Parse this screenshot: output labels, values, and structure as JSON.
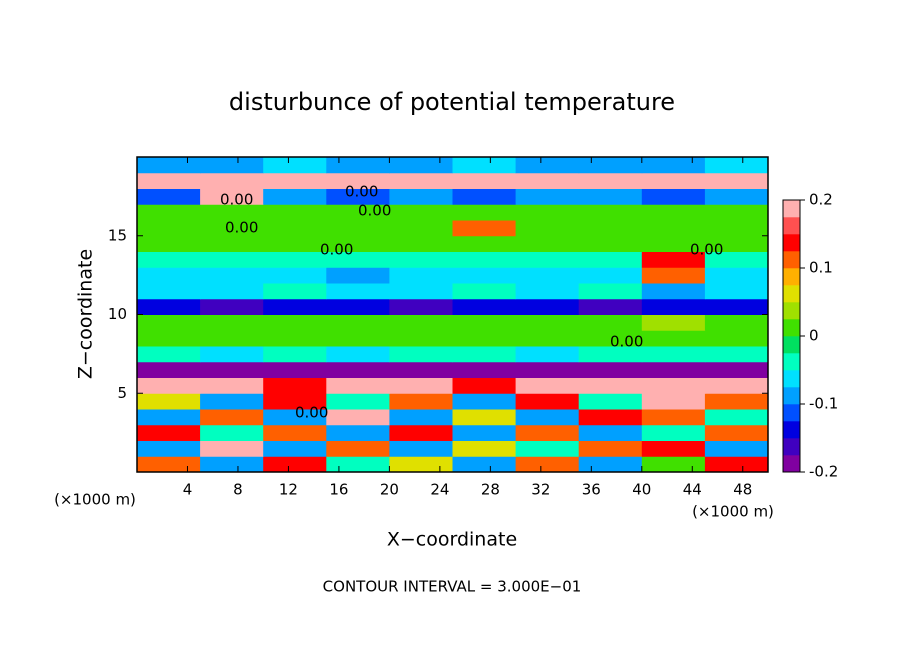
{
  "chart_data": {
    "type": "contourf",
    "title": "disturbunce of potential temperature",
    "x_label": "X−coordinate",
    "y_label": "Z−coordinate",
    "x_unit": "(×1000 m)",
    "x_unit_right": "(×1000 m)",
    "footer": "CONTOUR INTERVAL = 3.000E−01",
    "xlim": [
      0,
      50
    ],
    "ylim": [
      0,
      20
    ],
    "xticks": [
      4,
      8,
      12,
      16,
      20,
      24,
      28,
      32,
      36,
      40,
      44,
      48
    ],
    "yticks": [
      5,
      10,
      15
    ],
    "clim": [
      -0.2,
      0.2
    ],
    "cticks": [
      0.2,
      0.1,
      0,
      -0.1,
      -0.2
    ],
    "colors": [
      "#8000a0",
      "#4000c0",
      "#0000e0",
      "#0050ff",
      "#00a0ff",
      "#00e0ff",
      "#00ffc0",
      "#00e060",
      "#40e000",
      "#a0e000",
      "#e0e000",
      "#ffb000",
      "#ff6000",
      "#ff0000",
      "#ff5050",
      "#ffb0b0"
    ],
    "contour_labels": [
      "0.00",
      "0.00",
      "0.00",
      "0.00",
      "0.00",
      "0.00",
      "0.00",
      "0.00"
    ],
    "x": [
      2.5,
      7.5,
      12.5,
      17.5,
      22.5,
      27.5,
      32.5,
      37.5,
      42.5,
      47.5
    ],
    "y": [
      0.5,
      1.5,
      2.5,
      3.5,
      4.5,
      5.5,
      6.5,
      7.5,
      8.5,
      9.5,
      10.5,
      11.5,
      12.5,
      13.5,
      14.5,
      15.5,
      16.5,
      17.5,
      18.5,
      19.5
    ],
    "values": [
      [
        0.1,
        -0.1,
        0.15,
        -0.05,
        0.05,
        -0.1,
        0.1,
        -0.1,
        0.0,
        0.15
      ],
      [
        -0.1,
        0.2,
        -0.1,
        0.1,
        -0.1,
        0.05,
        -0.05,
        0.1,
        0.15,
        -0.1
      ],
      [
        0.15,
        -0.05,
        0.1,
        -0.1,
        0.15,
        -0.1,
        0.1,
        -0.1,
        -0.05,
        0.1
      ],
      [
        -0.1,
        0.1,
        -0.1,
        0.2,
        -0.1,
        0.05,
        -0.1,
        0.15,
        0.1,
        -0.05
      ],
      [
        0.05,
        -0.1,
        0.15,
        -0.05,
        0.1,
        -0.1,
        0.15,
        -0.05,
        0.2,
        0.1
      ],
      [
        0.2,
        0.2,
        0.15,
        0.2,
        0.2,
        0.15,
        0.2,
        0.2,
        0.2,
        0.2
      ],
      [
        -0.18,
        -0.2,
        -0.18,
        -0.2,
        -0.18,
        -0.2,
        -0.18,
        -0.2,
        -0.18,
        -0.18
      ],
      [
        -0.05,
        -0.06,
        -0.05,
        -0.06,
        -0.05,
        -0.05,
        -0.06,
        -0.05,
        -0.05,
        -0.05
      ],
      [
        0.0,
        0.01,
        0.0,
        0.01,
        0.0,
        0.0,
        0.0,
        0.01,
        0.02,
        0.0
      ],
      [
        0.02,
        0.02,
        0.01,
        0.02,
        0.02,
        0.01,
        0.02,
        0.02,
        0.03,
        0.02
      ],
      [
        -0.15,
        -0.16,
        -0.15,
        -0.15,
        -0.16,
        -0.15,
        -0.15,
        -0.16,
        -0.15,
        -0.15
      ],
      [
        -0.06,
        -0.06,
        -0.05,
        -0.06,
        -0.06,
        -0.05,
        -0.06,
        -0.05,
        -0.1,
        -0.06
      ],
      [
        -0.07,
        -0.06,
        -0.07,
        -0.08,
        -0.07,
        -0.07,
        -0.06,
        -0.07,
        0.1,
        -0.06
      ],
      [
        -0.04,
        -0.04,
        -0.05,
        -0.03,
        -0.04,
        -0.04,
        -0.04,
        -0.04,
        0.15,
        -0.04
      ],
      [
        0.0,
        0.0,
        0.01,
        0.0,
        0.0,
        0.01,
        0.0,
        0.0,
        0.0,
        0.0
      ],
      [
        0.01,
        0.01,
        0.0,
        0.01,
        0.01,
        0.1,
        0.01,
        0.0,
        0.01,
        0.01
      ],
      [
        0.02,
        0.02,
        0.02,
        0.02,
        0.02,
        0.02,
        0.02,
        0.02,
        0.02,
        0.02
      ],
      [
        -0.12,
        0.2,
        -0.1,
        -0.12,
        -0.1,
        -0.12,
        -0.1,
        -0.1,
        -0.12,
        -0.1
      ],
      [
        0.2,
        0.2,
        0.2,
        0.2,
        0.2,
        0.2,
        0.2,
        0.2,
        0.2,
        0.2
      ],
      [
        -0.08,
        -0.1,
        -0.06,
        -0.08,
        -0.1,
        -0.06,
        -0.08,
        -0.1,
        -0.08,
        -0.06
      ]
    ]
  }
}
